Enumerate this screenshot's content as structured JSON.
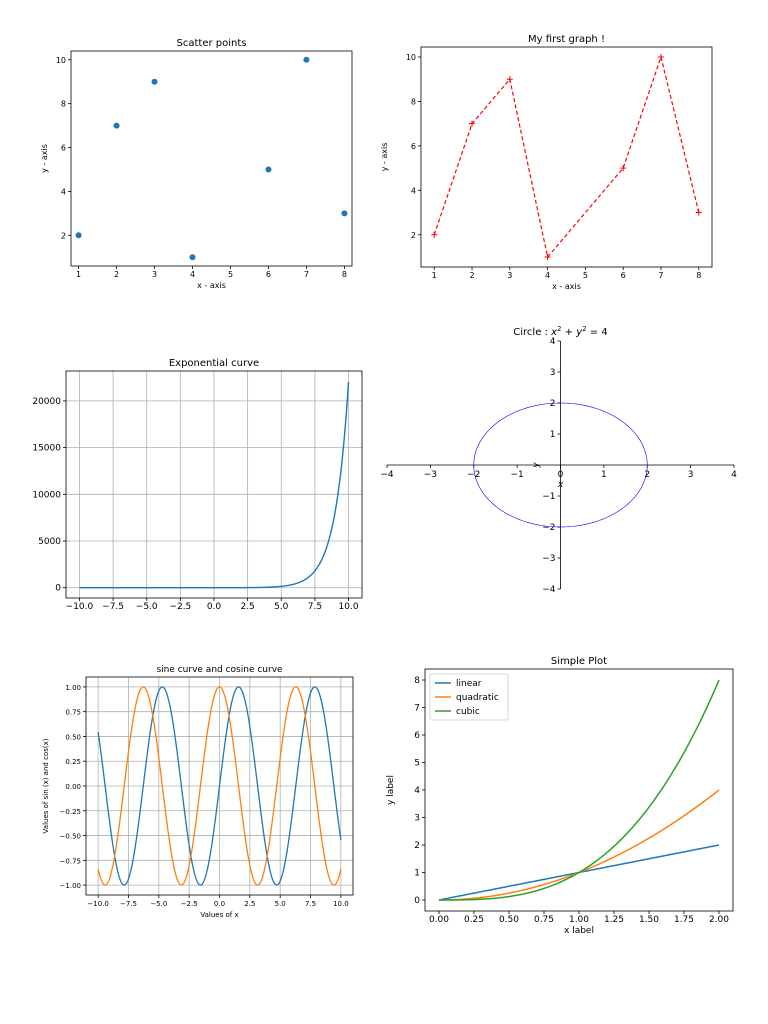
{
  "chart_data": [
    {
      "type": "scatter",
      "title": "Scatter points",
      "xlabel": "x - axis",
      "ylabel": "y - axis",
      "x": [
        1,
        2,
        3,
        4,
        6,
        7,
        8
      ],
      "y": [
        2,
        7,
        9,
        1,
        5,
        10,
        3
      ],
      "xlim": [
        0.8,
        8.2
      ],
      "ylim": [
        0.6,
        10.4
      ],
      "xticks": [
        1,
        2,
        3,
        4,
        5,
        6,
        7,
        8
      ],
      "yticks": [
        2,
        4,
        6,
        8,
        10
      ],
      "grid": false,
      "color": "#1f77b4"
    },
    {
      "type": "line",
      "title": "My first graph !",
      "xlabel": "x - axis",
      "ylabel": "y - axis",
      "x": [
        1,
        2,
        3,
        4,
        6,
        7,
        8
      ],
      "y": [
        2,
        7,
        9,
        1,
        5,
        10,
        3
      ],
      "xlim": [
        0.65,
        8.35
      ],
      "ylim": [
        0.55,
        10.45
      ],
      "xticks": [
        1,
        2,
        3,
        4,
        5,
        6,
        7,
        8
      ],
      "yticks": [
        2,
        4,
        6,
        8,
        10
      ],
      "line_style": "dashed",
      "marker": "+",
      "grid": false,
      "color": "#ff0000"
    },
    {
      "type": "line",
      "title": "Exponential curve",
      "function": "exp(x)",
      "x_range": [
        -10,
        10
      ],
      "xlim": [
        -11,
        11
      ],
      "ylim": [
        -1100,
        23200
      ],
      "xticks": [
        -10,
        -7.5,
        -5,
        -2.5,
        0,
        2.5,
        5,
        7.5,
        10
      ],
      "xtick_labels": [
        "−10.0",
        "−7.5",
        "−5.0",
        "−2.5",
        "0.0",
        "2.5",
        "5.0",
        "7.5",
        "10.0"
      ],
      "yticks": [
        0,
        5000,
        10000,
        15000,
        20000
      ],
      "grid": true,
      "color": "#1f77b4"
    },
    {
      "type": "line",
      "title": "Circle : x² + y² = 4",
      "title_parts": [
        "Circle : ",
        "x",
        "2",
        " + ",
        "y",
        "2",
        " = 4"
      ],
      "function": "x^2 + y^2 = 4",
      "radius": 2,
      "xlim": [
        -4,
        4
      ],
      "ylim": [
        -4,
        4
      ],
      "xticks": [
        -4,
        -3,
        -2,
        -1,
        0,
        1,
        2,
        3,
        4
      ],
      "xtick_labels": [
        "−4",
        "−3",
        "−2",
        "−1",
        "0",
        "1",
        "2",
        "3",
        "4"
      ],
      "yticks": [
        -4,
        -3,
        -2,
        -1,
        0,
        1,
        2,
        3,
        4
      ],
      "ytick_labels": [
        "−4",
        "−3",
        "−2",
        "−1",
        "0",
        "1",
        "2",
        "3",
        "4"
      ],
      "xlabel": "x",
      "ylabel": "y",
      "spines": "centered",
      "grid": false,
      "color": "#0000ff"
    },
    {
      "type": "line",
      "title": "sine curve and cosine curve",
      "xlabel": "Values of x",
      "ylabel": "Values of sin (x) and cos(x)",
      "x_range": [
        -10,
        10
      ],
      "xlim": [
        -11,
        11
      ],
      "ylim": [
        -1.1,
        1.1
      ],
      "xticks": [
        -10,
        -7.5,
        -5,
        -2.5,
        0,
        2.5,
        5,
        7.5,
        10
      ],
      "xtick_labels": [
        "−10.0",
        "−7.5",
        "−5.0",
        "−2.5",
        "0.0",
        "2.5",
        "5.0",
        "7.5",
        "10.0"
      ],
      "yticks": [
        -1,
        -0.75,
        -0.5,
        -0.25,
        0,
        0.25,
        0.5,
        0.75,
        1
      ],
      "ytick_labels": [
        "−1.00",
        "−0.75",
        "−0.50",
        "−0.25",
        "0.00",
        "0.25",
        "0.50",
        "0.75",
        "1.00"
      ],
      "series": [
        {
          "function": "sin(x)",
          "color": "#1f77b4"
        },
        {
          "function": "cos(x)",
          "color": "#ff7f0e"
        }
      ],
      "grid": true
    },
    {
      "type": "line",
      "title": "Simple Plot",
      "xlabel": "x label",
      "ylabel": "y label",
      "x_range": [
        0,
        2
      ],
      "xlim": [
        -0.1,
        2.1
      ],
      "ylim": [
        -0.4,
        8.4
      ],
      "xticks": [
        0,
        0.25,
        0.5,
        0.75,
        1,
        1.25,
        1.5,
        1.75,
        2
      ],
      "xtick_labels": [
        "0.00",
        "0.25",
        "0.50",
        "0.75",
        "1.00",
        "1.25",
        "1.50",
        "1.75",
        "2.00"
      ],
      "yticks": [
        0,
        1,
        2,
        3,
        4,
        5,
        6,
        7,
        8
      ],
      "series": [
        {
          "name": "linear",
          "function": "x",
          "color": "#1f77b4"
        },
        {
          "name": "quadratic",
          "function": "x^2",
          "color": "#ff7f0e"
        },
        {
          "name": "cubic",
          "function": "x^3",
          "color": "#2ca02c"
        }
      ],
      "legend": "top-left",
      "grid": false
    }
  ]
}
